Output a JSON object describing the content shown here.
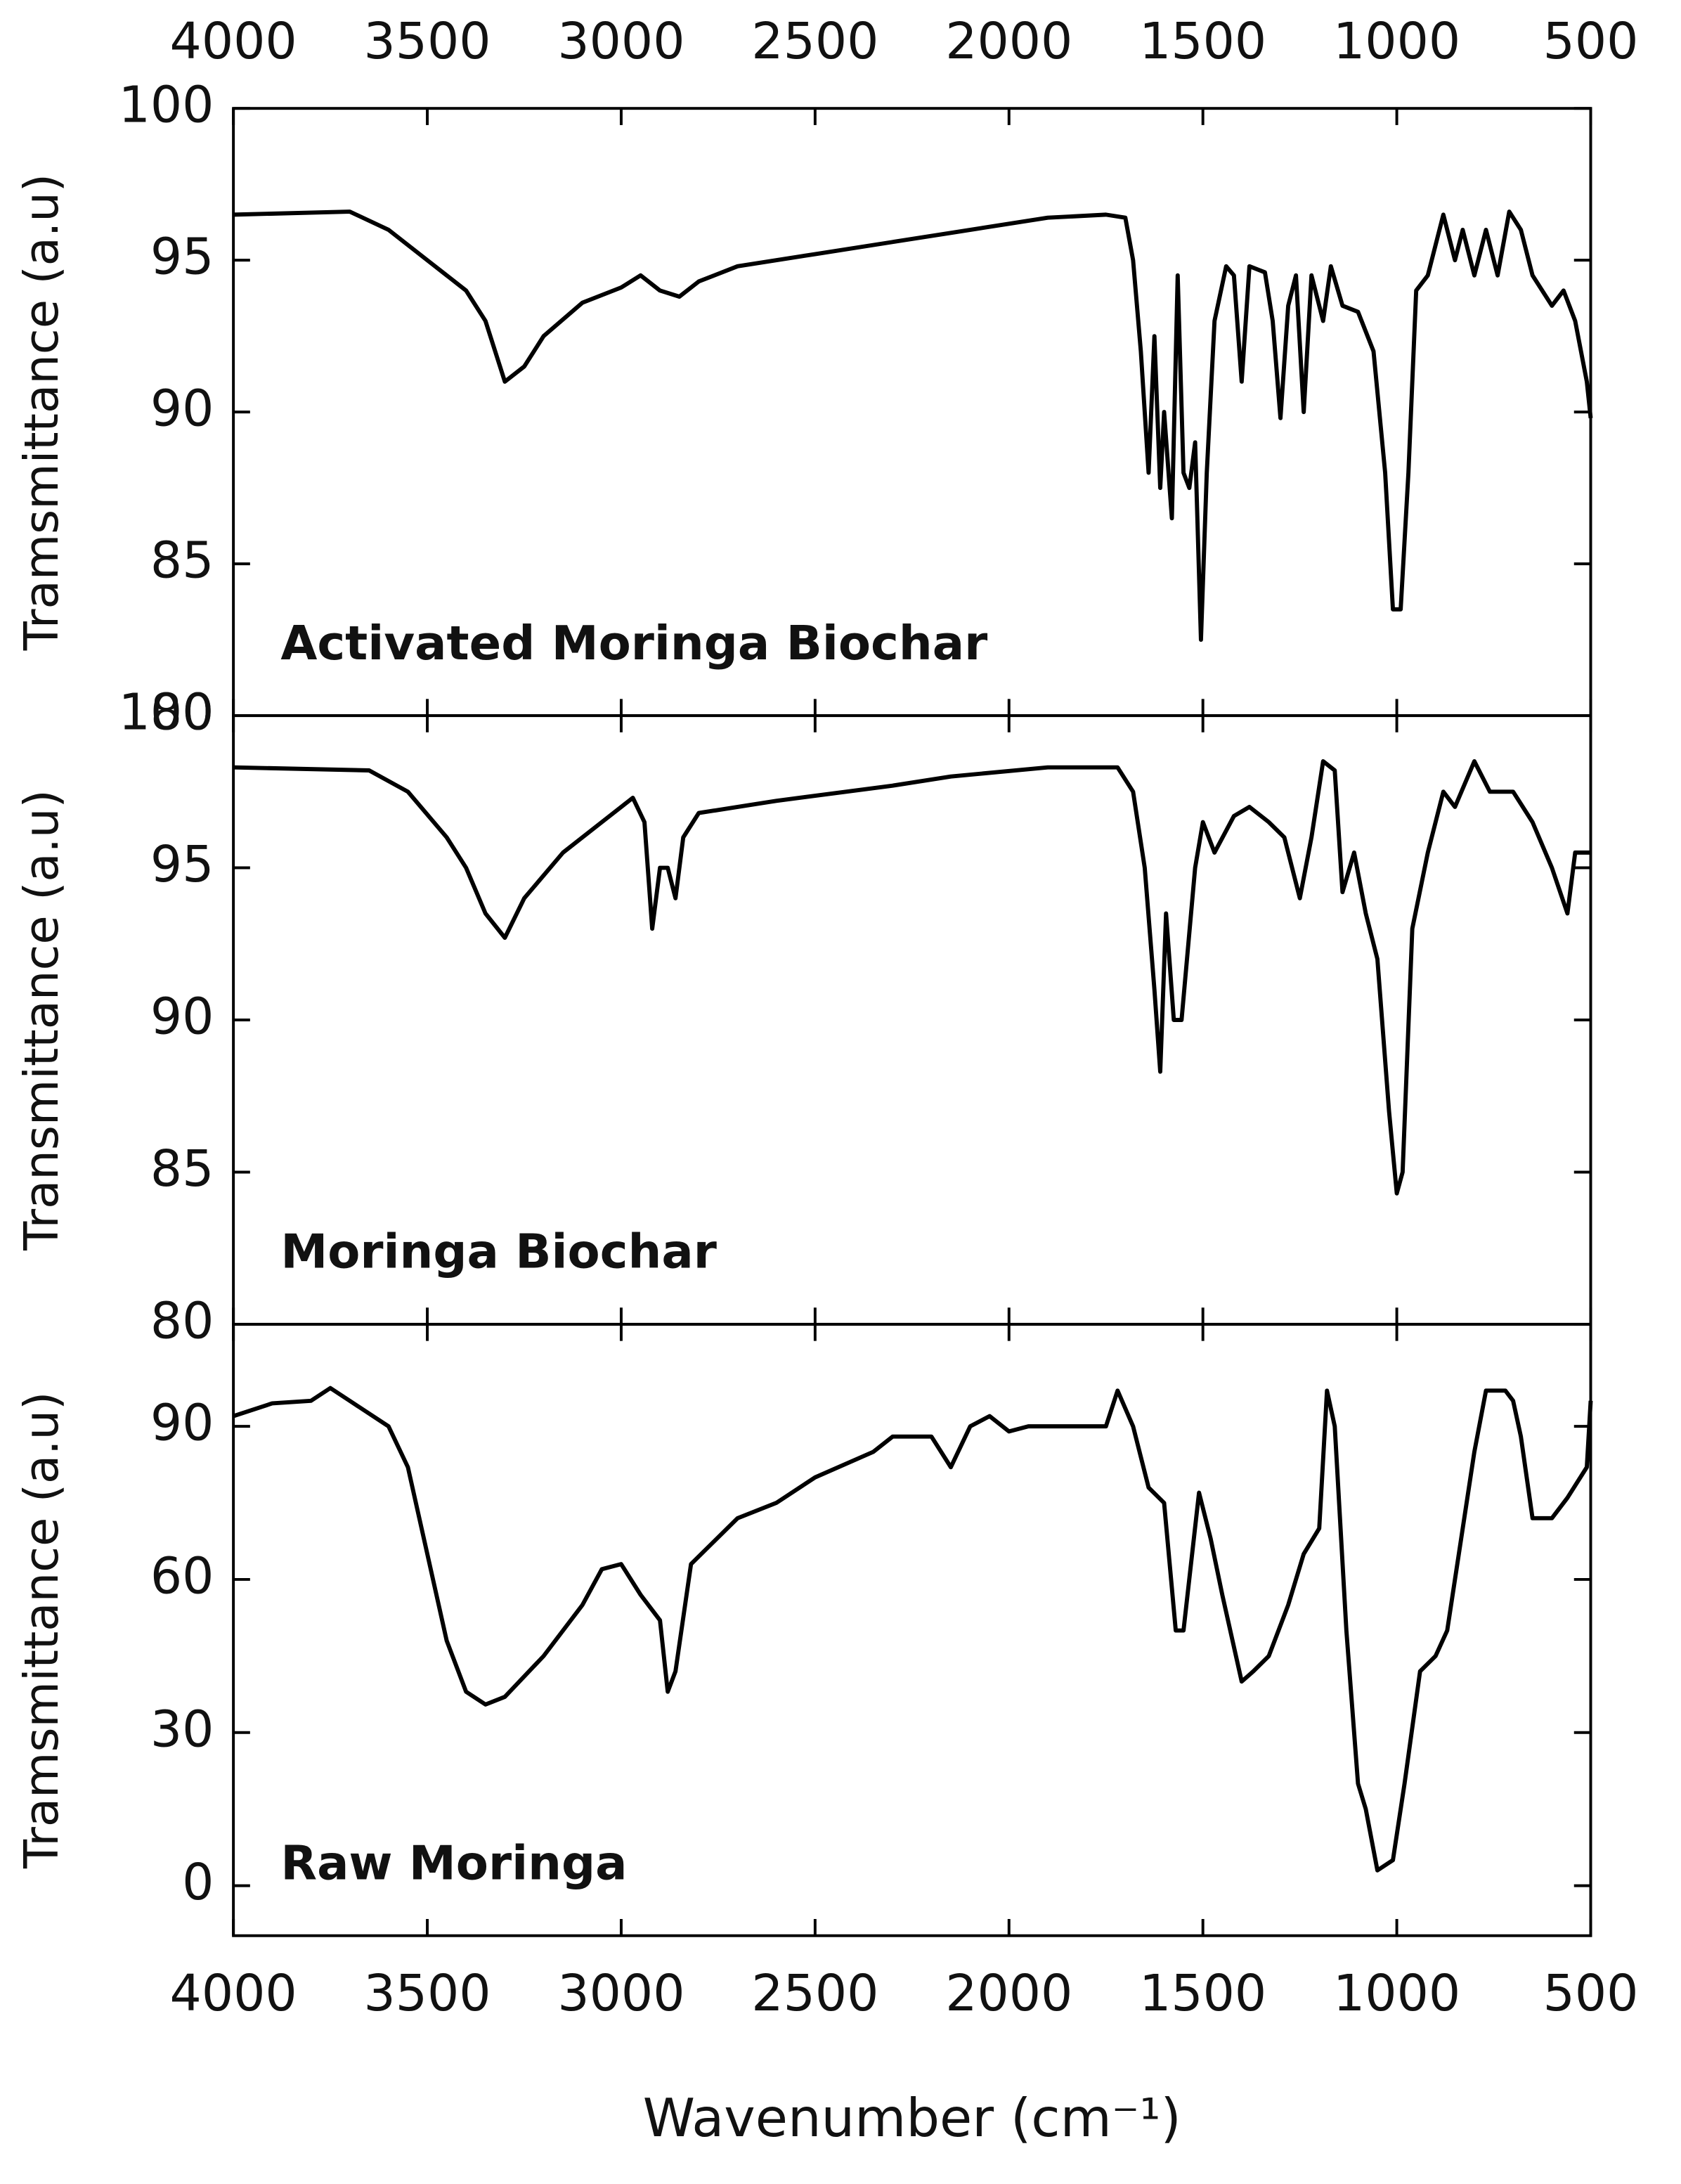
{
  "chart_data": [
    {
      "type": "line",
      "ylabel": "Tramsmittance (a.u)",
      "annotation": "Activated Moringa Biochar",
      "xlim": [
        4000,
        500
      ],
      "xticks": [
        4000,
        3500,
        3000,
        2500,
        2000,
        1500,
        1000,
        500
      ],
      "ylim": [
        80,
        100
      ],
      "yticks": [
        80,
        85,
        90,
        95,
        100
      ],
      "series": [
        {
          "color": "#000000",
          "x": [
            4000,
            3700,
            3600,
            3500,
            3400,
            3350,
            3300,
            3250,
            3200,
            3100,
            3000,
            2950,
            2900,
            2850,
            2800,
            2700,
            2500,
            2300,
            2150,
            2000,
            1900,
            1750,
            1700,
            1680,
            1660,
            1640,
            1625,
            1610,
            1600,
            1580,
            1565,
            1550,
            1535,
            1520,
            1505,
            1490,
            1470,
            1440,
            1420,
            1400,
            1380,
            1340,
            1320,
            1300,
            1280,
            1260,
            1240,
            1220,
            1190,
            1170,
            1140,
            1100,
            1060,
            1030,
            1010,
            990,
            970,
            950,
            920,
            880,
            850,
            830,
            800,
            770,
            740,
            710,
            680,
            650,
            600,
            570,
            540,
            510,
            500
          ],
          "values": [
            96.5,
            96.6,
            96,
            95,
            94,
            93,
            91,
            91.5,
            92.5,
            93.6,
            94.1,
            94.5,
            94,
            93.8,
            94.3,
            94.8,
            95.2,
            95.6,
            95.9,
            96.2,
            96.4,
            96.5,
            96.4,
            95,
            92,
            88,
            92.5,
            87.5,
            90,
            86.5,
            94.5,
            88,
            87.5,
            89,
            82.5,
            88,
            93,
            94.8,
            94.5,
            91,
            94.8,
            94.6,
            93,
            89.8,
            93.5,
            94.5,
            90,
            94.5,
            93,
            94.8,
            93.5,
            93.3,
            92,
            88,
            83.5,
            83.5,
            88,
            94,
            94.5,
            96.5,
            95,
            96,
            94.5,
            96,
            94.5,
            96.6,
            96,
            94.5,
            93.5,
            94,
            93,
            91,
            89.8
          ]
        }
      ]
    },
    {
      "type": "line",
      "ylabel": "Transmittance (a.u)",
      "annotation": "Moringa Biochar",
      "xlim": [
        4000,
        500
      ],
      "xticks": [
        4000,
        3500,
        3000,
        2500,
        2000,
        1500,
        1000,
        500
      ],
      "ylim": [
        80,
        100
      ],
      "yticks": [
        80,
        85,
        90,
        95,
        100
      ],
      "series": [
        {
          "color": "#000000",
          "x": [
            4000,
            3650,
            3550,
            3450,
            3400,
            3350,
            3300,
            3250,
            3150,
            3050,
            2970,
            2940,
            2920,
            2900,
            2880,
            2860,
            2840,
            2800,
            2600,
            2300,
            2150,
            1900,
            1720,
            1680,
            1650,
            1625,
            1610,
            1595,
            1575,
            1555,
            1520,
            1500,
            1470,
            1420,
            1380,
            1330,
            1290,
            1250,
            1220,
            1190,
            1160,
            1140,
            1110,
            1080,
            1050,
            1020,
            1000,
            985,
            960,
            920,
            880,
            850,
            800,
            760,
            700,
            650,
            600,
            560,
            540,
            510,
            500
          ],
          "values": [
            98.3,
            98.2,
            97.5,
            96,
            95,
            93.5,
            92.7,
            94,
            95.5,
            96.5,
            97.3,
            96.5,
            93,
            95,
            95,
            94,
            96,
            96.8,
            97.2,
            97.7,
            98,
            98.3,
            98.3,
            97.5,
            95,
            91,
            88.3,
            93.5,
            90,
            90,
            95,
            96.5,
            95.5,
            96.7,
            97,
            96.5,
            96,
            94,
            96,
            98.5,
            98.2,
            94.2,
            95.5,
            93.5,
            92,
            87,
            84.3,
            85,
            93,
            95.5,
            97.5,
            97,
            98.5,
            97.5,
            97.5,
            96.5,
            95,
            93.5,
            95.5,
            95.5,
            95.5
          ]
        }
      ]
    },
    {
      "type": "line",
      "ylabel": "Tramsmittance (a.u)",
      "annotation": "Raw Moringa",
      "xlabel": "Wavenumber (cm⁻¹)",
      "xlim": [
        4000,
        500
      ],
      "xticks": [
        4000,
        3500,
        3000,
        2500,
        2000,
        1500,
        1000,
        500
      ],
      "ylim": [
        -9.8,
        110
      ],
      "yticks": [
        0,
        30,
        60,
        90
      ],
      "series": [
        {
          "color": "#000000",
          "x": [
            4000,
            3900,
            3800,
            3750,
            3700,
            3600,
            3550,
            3500,
            3450,
            3400,
            3350,
            3300,
            3200,
            3100,
            3050,
            3000,
            2950,
            2900,
            2880,
            2860,
            2820,
            2700,
            2600,
            2500,
            2350,
            2300,
            2200,
            2150,
            2100,
            2050,
            2000,
            1950,
            1750,
            1720,
            1680,
            1640,
            1600,
            1570,
            1550,
            1510,
            1480,
            1450,
            1400,
            1370,
            1330,
            1280,
            1240,
            1200,
            1180,
            1160,
            1130,
            1100,
            1080,
            1050,
            1010,
            980,
            940,
            900,
            870,
            840,
            800,
            770,
            720,
            700,
            680,
            650,
            600,
            560,
            510,
            500
          ],
          "values": [
            92,
            94.5,
            95,
            97.5,
            95,
            90,
            82,
            65,
            48,
            38,
            35.5,
            37,
            45,
            55,
            62,
            63,
            57,
            52,
            38,
            42,
            63,
            72,
            75,
            80,
            85,
            88,
            88,
            82,
            90,
            92,
            89,
            90,
            90,
            97,
            90,
            78,
            75,
            50,
            50,
            77,
            68,
            57,
            40,
            42,
            45,
            55,
            65,
            70,
            97,
            90,
            50,
            20,
            15,
            3,
            5,
            20,
            42,
            45,
            50,
            65,
            85,
            97,
            97,
            95,
            88,
            72,
            72,
            76,
            82,
            95
          ]
        }
      ]
    }
  ]
}
